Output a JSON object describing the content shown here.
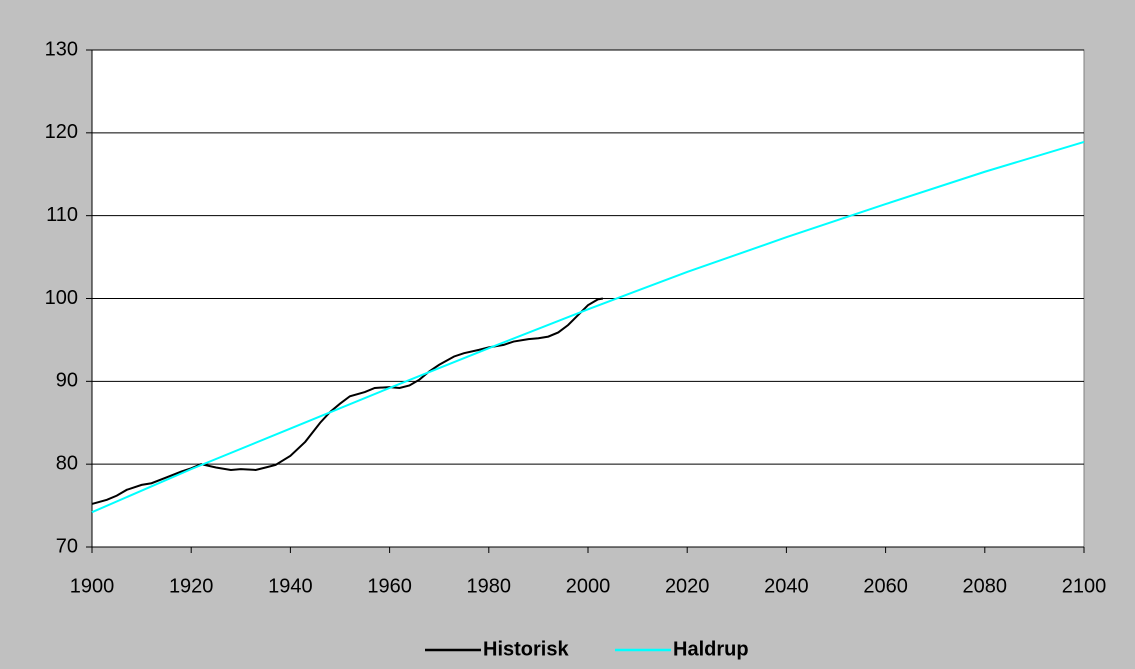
{
  "chart_data": {
    "type": "line",
    "xlim": [
      1900,
      2100
    ],
    "xticks": [
      1900,
      1920,
      1940,
      1960,
      1980,
      2000,
      2020,
      2040,
      2060,
      2080,
      2100
    ],
    "ylim": [
      70,
      130
    ],
    "yticks": [
      70,
      80,
      90,
      100,
      110,
      120,
      130
    ],
    "grid": true,
    "legend": "bottom",
    "series": [
      {
        "name": "Historisk",
        "color": "#000000",
        "x": [
          1900,
          1903,
          1905,
          1907,
          1910,
          1912,
          1915,
          1918,
          1920,
          1922,
          1925,
          1928,
          1930,
          1933,
          1935,
          1937,
          1940,
          1943,
          1946,
          1948,
          1950,
          1952,
          1955,
          1957,
          1960,
          1962,
          1964,
          1966,
          1968,
          1970,
          1973,
          1975,
          1978,
          1980,
          1983,
          1985,
          1988,
          1990,
          1992,
          1994,
          1996,
          1998,
          2000,
          2002,
          2003
        ],
        "values": [
          75.2,
          75.7,
          76.2,
          76.9,
          77.5,
          77.7,
          78.4,
          79.1,
          79.5,
          80.0,
          79.6,
          79.3,
          79.4,
          79.3,
          79.6,
          79.9,
          81.0,
          82.7,
          85.0,
          86.3,
          87.3,
          88.2,
          88.7,
          89.2,
          89.3,
          89.2,
          89.5,
          90.2,
          91.2,
          92.0,
          93.0,
          93.4,
          93.8,
          94.1,
          94.4,
          94.8,
          95.1,
          95.2,
          95.4,
          95.9,
          96.8,
          98.0,
          99.2,
          99.9,
          100.0
        ]
      },
      {
        "name": "Haldrup",
        "color": "#00ffff",
        "x": [
          1900,
          1920,
          1940,
          1960,
          1980,
          2000,
          2020,
          2040,
          2060,
          2080,
          2100
        ],
        "values": [
          74.2,
          79.4,
          84.3,
          89.2,
          94.0,
          98.7,
          103.2,
          107.4,
          111.4,
          115.3,
          118.9
        ]
      }
    ]
  }
}
